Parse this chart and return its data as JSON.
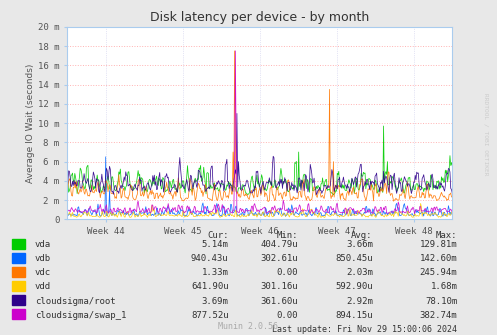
{
  "title": "Disk latency per device - by month",
  "ylabel": "Average IO Wait (seconds)",
  "bg_color": "#e8e8e8",
  "plot_bg_color": "#ffffff",
  "grid_color": "#ffaaaa",
  "x_tick_labels": [
    "Week 44",
    "Week 45",
    "Week 46",
    "Week 47",
    "Week 48"
  ],
  "y_tick_labels": [
    "0",
    "2 m",
    "4 m",
    "6 m",
    "8 m",
    "10 m",
    "12 m",
    "14 m",
    "16 m",
    "18 m",
    "20 m"
  ],
  "y_max": 0.02,
  "y_min": 0.0,
  "series": [
    {
      "name": "vda",
      "color": "#00cc00"
    },
    {
      "name": "vdb",
      "color": "#0066ff"
    },
    {
      "name": "vdc",
      "color": "#ff7700"
    },
    {
      "name": "vdd",
      "color": "#ffcc00"
    },
    {
      "name": "cloudsigma/root",
      "color": "#2e008b"
    },
    {
      "name": "cloudsigma/swap_1",
      "color": "#cc00cc"
    }
  ],
  "legend_headers": [
    "Cur:",
    "Min:",
    "Avg:",
    "Max:"
  ],
  "legend_rows": [
    [
      "vda",
      "5.14m",
      "404.79u",
      "3.66m",
      "129.81m"
    ],
    [
      "vdb",
      "940.43u",
      "302.61u",
      "850.45u",
      "142.60m"
    ],
    [
      "vdc",
      "1.33m",
      "0.00",
      "2.03m",
      "245.94m"
    ],
    [
      "vdd",
      "641.90u",
      "301.16u",
      "592.90u",
      "1.68m"
    ],
    [
      "cloudsigma/root",
      "3.69m",
      "361.60u",
      "2.92m",
      "78.10m"
    ],
    [
      "cloudsigma/swap_1",
      "877.52u",
      "0.00",
      "894.15u",
      "382.74m"
    ]
  ],
  "last_update": "Last update: Fri Nov 29 15:00:06 2024",
  "munin_version": "Munin 2.0.56",
  "watermark": "RRDTOOL / TOBI OETIKER",
  "n_points": 500
}
